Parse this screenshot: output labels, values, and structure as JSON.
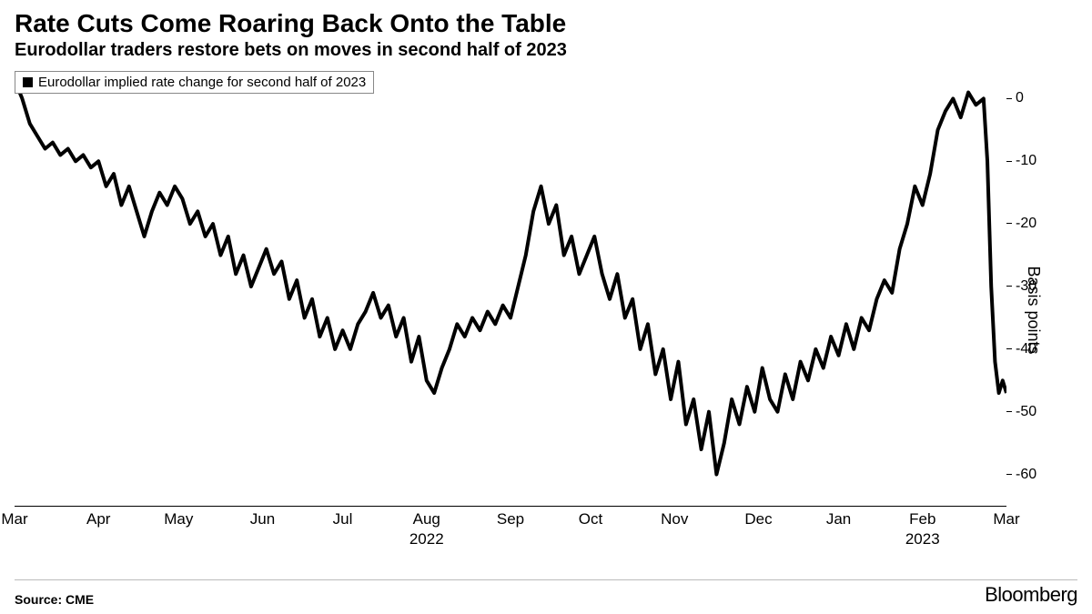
{
  "title": "Rate Cuts Come Roaring Back Onto the Table",
  "subtitle": "Eurodollar traders restore bets on moves in second half of 2023",
  "legend_label": "Eurodollar implied rate change for second half of 2023",
  "source": "Source: CME",
  "brand": "Bloomberg",
  "chart": {
    "type": "line",
    "line_color": "#000000",
    "line_width": 1.6,
    "background_color": "#ffffff",
    "yaxis": {
      "title": "Basis points",
      "min": -65,
      "max": 5,
      "ticks": [
        0,
        -10,
        -20,
        -30,
        -40,
        -50,
        -60
      ],
      "title_fontsize": 18,
      "tick_fontsize": 16
    },
    "xaxis": {
      "min": 0,
      "max": 260,
      "tick_positions": [
        0,
        22,
        43,
        65,
        86,
        108,
        130,
        151,
        173,
        195,
        216,
        238,
        260
      ],
      "tick_labels": [
        "Mar",
        "Apr",
        "May",
        "Jun",
        "Jul",
        "Aug",
        "Sep",
        "Oct",
        "Nov",
        "Dec",
        "Jan",
        "Feb",
        "Mar"
      ],
      "year_labels": [
        {
          "pos": 108,
          "text": "2022"
        },
        {
          "pos": 238,
          "text": "2023"
        }
      ],
      "tick_fontsize": 17
    },
    "series": [
      {
        "x": 0,
        "y": 3
      },
      {
        "x": 2,
        "y": 0
      },
      {
        "x": 4,
        "y": -4
      },
      {
        "x": 6,
        "y": -6
      },
      {
        "x": 8,
        "y": -8
      },
      {
        "x": 10,
        "y": -7
      },
      {
        "x": 12,
        "y": -9
      },
      {
        "x": 14,
        "y": -8
      },
      {
        "x": 16,
        "y": -10
      },
      {
        "x": 18,
        "y": -9
      },
      {
        "x": 20,
        "y": -11
      },
      {
        "x": 22,
        "y": -10
      },
      {
        "x": 24,
        "y": -14
      },
      {
        "x": 26,
        "y": -12
      },
      {
        "x": 28,
        "y": -17
      },
      {
        "x": 30,
        "y": -14
      },
      {
        "x": 32,
        "y": -18
      },
      {
        "x": 34,
        "y": -22
      },
      {
        "x": 36,
        "y": -18
      },
      {
        "x": 38,
        "y": -15
      },
      {
        "x": 40,
        "y": -17
      },
      {
        "x": 42,
        "y": -14
      },
      {
        "x": 44,
        "y": -16
      },
      {
        "x": 46,
        "y": -20
      },
      {
        "x": 48,
        "y": -18
      },
      {
        "x": 50,
        "y": -22
      },
      {
        "x": 52,
        "y": -20
      },
      {
        "x": 54,
        "y": -25
      },
      {
        "x": 56,
        "y": -22
      },
      {
        "x": 58,
        "y": -28
      },
      {
        "x": 60,
        "y": -25
      },
      {
        "x": 62,
        "y": -30
      },
      {
        "x": 64,
        "y": -27
      },
      {
        "x": 66,
        "y": -24
      },
      {
        "x": 68,
        "y": -28
      },
      {
        "x": 70,
        "y": -26
      },
      {
        "x": 72,
        "y": -32
      },
      {
        "x": 74,
        "y": -29
      },
      {
        "x": 76,
        "y": -35
      },
      {
        "x": 78,
        "y": -32
      },
      {
        "x": 80,
        "y": -38
      },
      {
        "x": 82,
        "y": -35
      },
      {
        "x": 84,
        "y": -40
      },
      {
        "x": 86,
        "y": -37
      },
      {
        "x": 88,
        "y": -40
      },
      {
        "x": 90,
        "y": -36
      },
      {
        "x": 92,
        "y": -34
      },
      {
        "x": 94,
        "y": -31
      },
      {
        "x": 96,
        "y": -35
      },
      {
        "x": 98,
        "y": -33
      },
      {
        "x": 100,
        "y": -38
      },
      {
        "x": 102,
        "y": -35
      },
      {
        "x": 104,
        "y": -42
      },
      {
        "x": 106,
        "y": -38
      },
      {
        "x": 108,
        "y": -45
      },
      {
        "x": 110,
        "y": -47
      },
      {
        "x": 112,
        "y": -43
      },
      {
        "x": 114,
        "y": -40
      },
      {
        "x": 116,
        "y": -36
      },
      {
        "x": 118,
        "y": -38
      },
      {
        "x": 120,
        "y": -35
      },
      {
        "x": 122,
        "y": -37
      },
      {
        "x": 124,
        "y": -34
      },
      {
        "x": 126,
        "y": -36
      },
      {
        "x": 128,
        "y": -33
      },
      {
        "x": 130,
        "y": -35
      },
      {
        "x": 132,
        "y": -30
      },
      {
        "x": 134,
        "y": -25
      },
      {
        "x": 136,
        "y": -18
      },
      {
        "x": 138,
        "y": -14
      },
      {
        "x": 140,
        "y": -20
      },
      {
        "x": 142,
        "y": -17
      },
      {
        "x": 144,
        "y": -25
      },
      {
        "x": 146,
        "y": -22
      },
      {
        "x": 148,
        "y": -28
      },
      {
        "x": 150,
        "y": -25
      },
      {
        "x": 152,
        "y": -22
      },
      {
        "x": 154,
        "y": -28
      },
      {
        "x": 156,
        "y": -32
      },
      {
        "x": 158,
        "y": -28
      },
      {
        "x": 160,
        "y": -35
      },
      {
        "x": 162,
        "y": -32
      },
      {
        "x": 164,
        "y": -40
      },
      {
        "x": 166,
        "y": -36
      },
      {
        "x": 168,
        "y": -44
      },
      {
        "x": 170,
        "y": -40
      },
      {
        "x": 172,
        "y": -48
      },
      {
        "x": 174,
        "y": -42
      },
      {
        "x": 176,
        "y": -52
      },
      {
        "x": 178,
        "y": -48
      },
      {
        "x": 180,
        "y": -56
      },
      {
        "x": 182,
        "y": -50
      },
      {
        "x": 184,
        "y": -60
      },
      {
        "x": 186,
        "y": -55
      },
      {
        "x": 188,
        "y": -48
      },
      {
        "x": 190,
        "y": -52
      },
      {
        "x": 192,
        "y": -46
      },
      {
        "x": 194,
        "y": -50
      },
      {
        "x": 196,
        "y": -43
      },
      {
        "x": 198,
        "y": -48
      },
      {
        "x": 200,
        "y": -50
      },
      {
        "x": 202,
        "y": -44
      },
      {
        "x": 204,
        "y": -48
      },
      {
        "x": 206,
        "y": -42
      },
      {
        "x": 208,
        "y": -45
      },
      {
        "x": 210,
        "y": -40
      },
      {
        "x": 212,
        "y": -43
      },
      {
        "x": 214,
        "y": -38
      },
      {
        "x": 216,
        "y": -41
      },
      {
        "x": 218,
        "y": -36
      },
      {
        "x": 220,
        "y": -40
      },
      {
        "x": 222,
        "y": -35
      },
      {
        "x": 224,
        "y": -37
      },
      {
        "x": 226,
        "y": -32
      },
      {
        "x": 228,
        "y": -29
      },
      {
        "x": 230,
        "y": -31
      },
      {
        "x": 232,
        "y": -24
      },
      {
        "x": 234,
        "y": -20
      },
      {
        "x": 236,
        "y": -14
      },
      {
        "x": 238,
        "y": -17
      },
      {
        "x": 240,
        "y": -12
      },
      {
        "x": 242,
        "y": -5
      },
      {
        "x": 244,
        "y": -2
      },
      {
        "x": 246,
        "y": 0
      },
      {
        "x": 248,
        "y": -3
      },
      {
        "x": 250,
        "y": 1
      },
      {
        "x": 252,
        "y": -1
      },
      {
        "x": 254,
        "y": 0
      },
      {
        "x": 255,
        "y": -10
      },
      {
        "x": 256,
        "y": -30
      },
      {
        "x": 257,
        "y": -42
      },
      {
        "x": 258,
        "y": -47
      },
      {
        "x": 259,
        "y": -45
      },
      {
        "x": 260,
        "y": -47
      }
    ]
  }
}
